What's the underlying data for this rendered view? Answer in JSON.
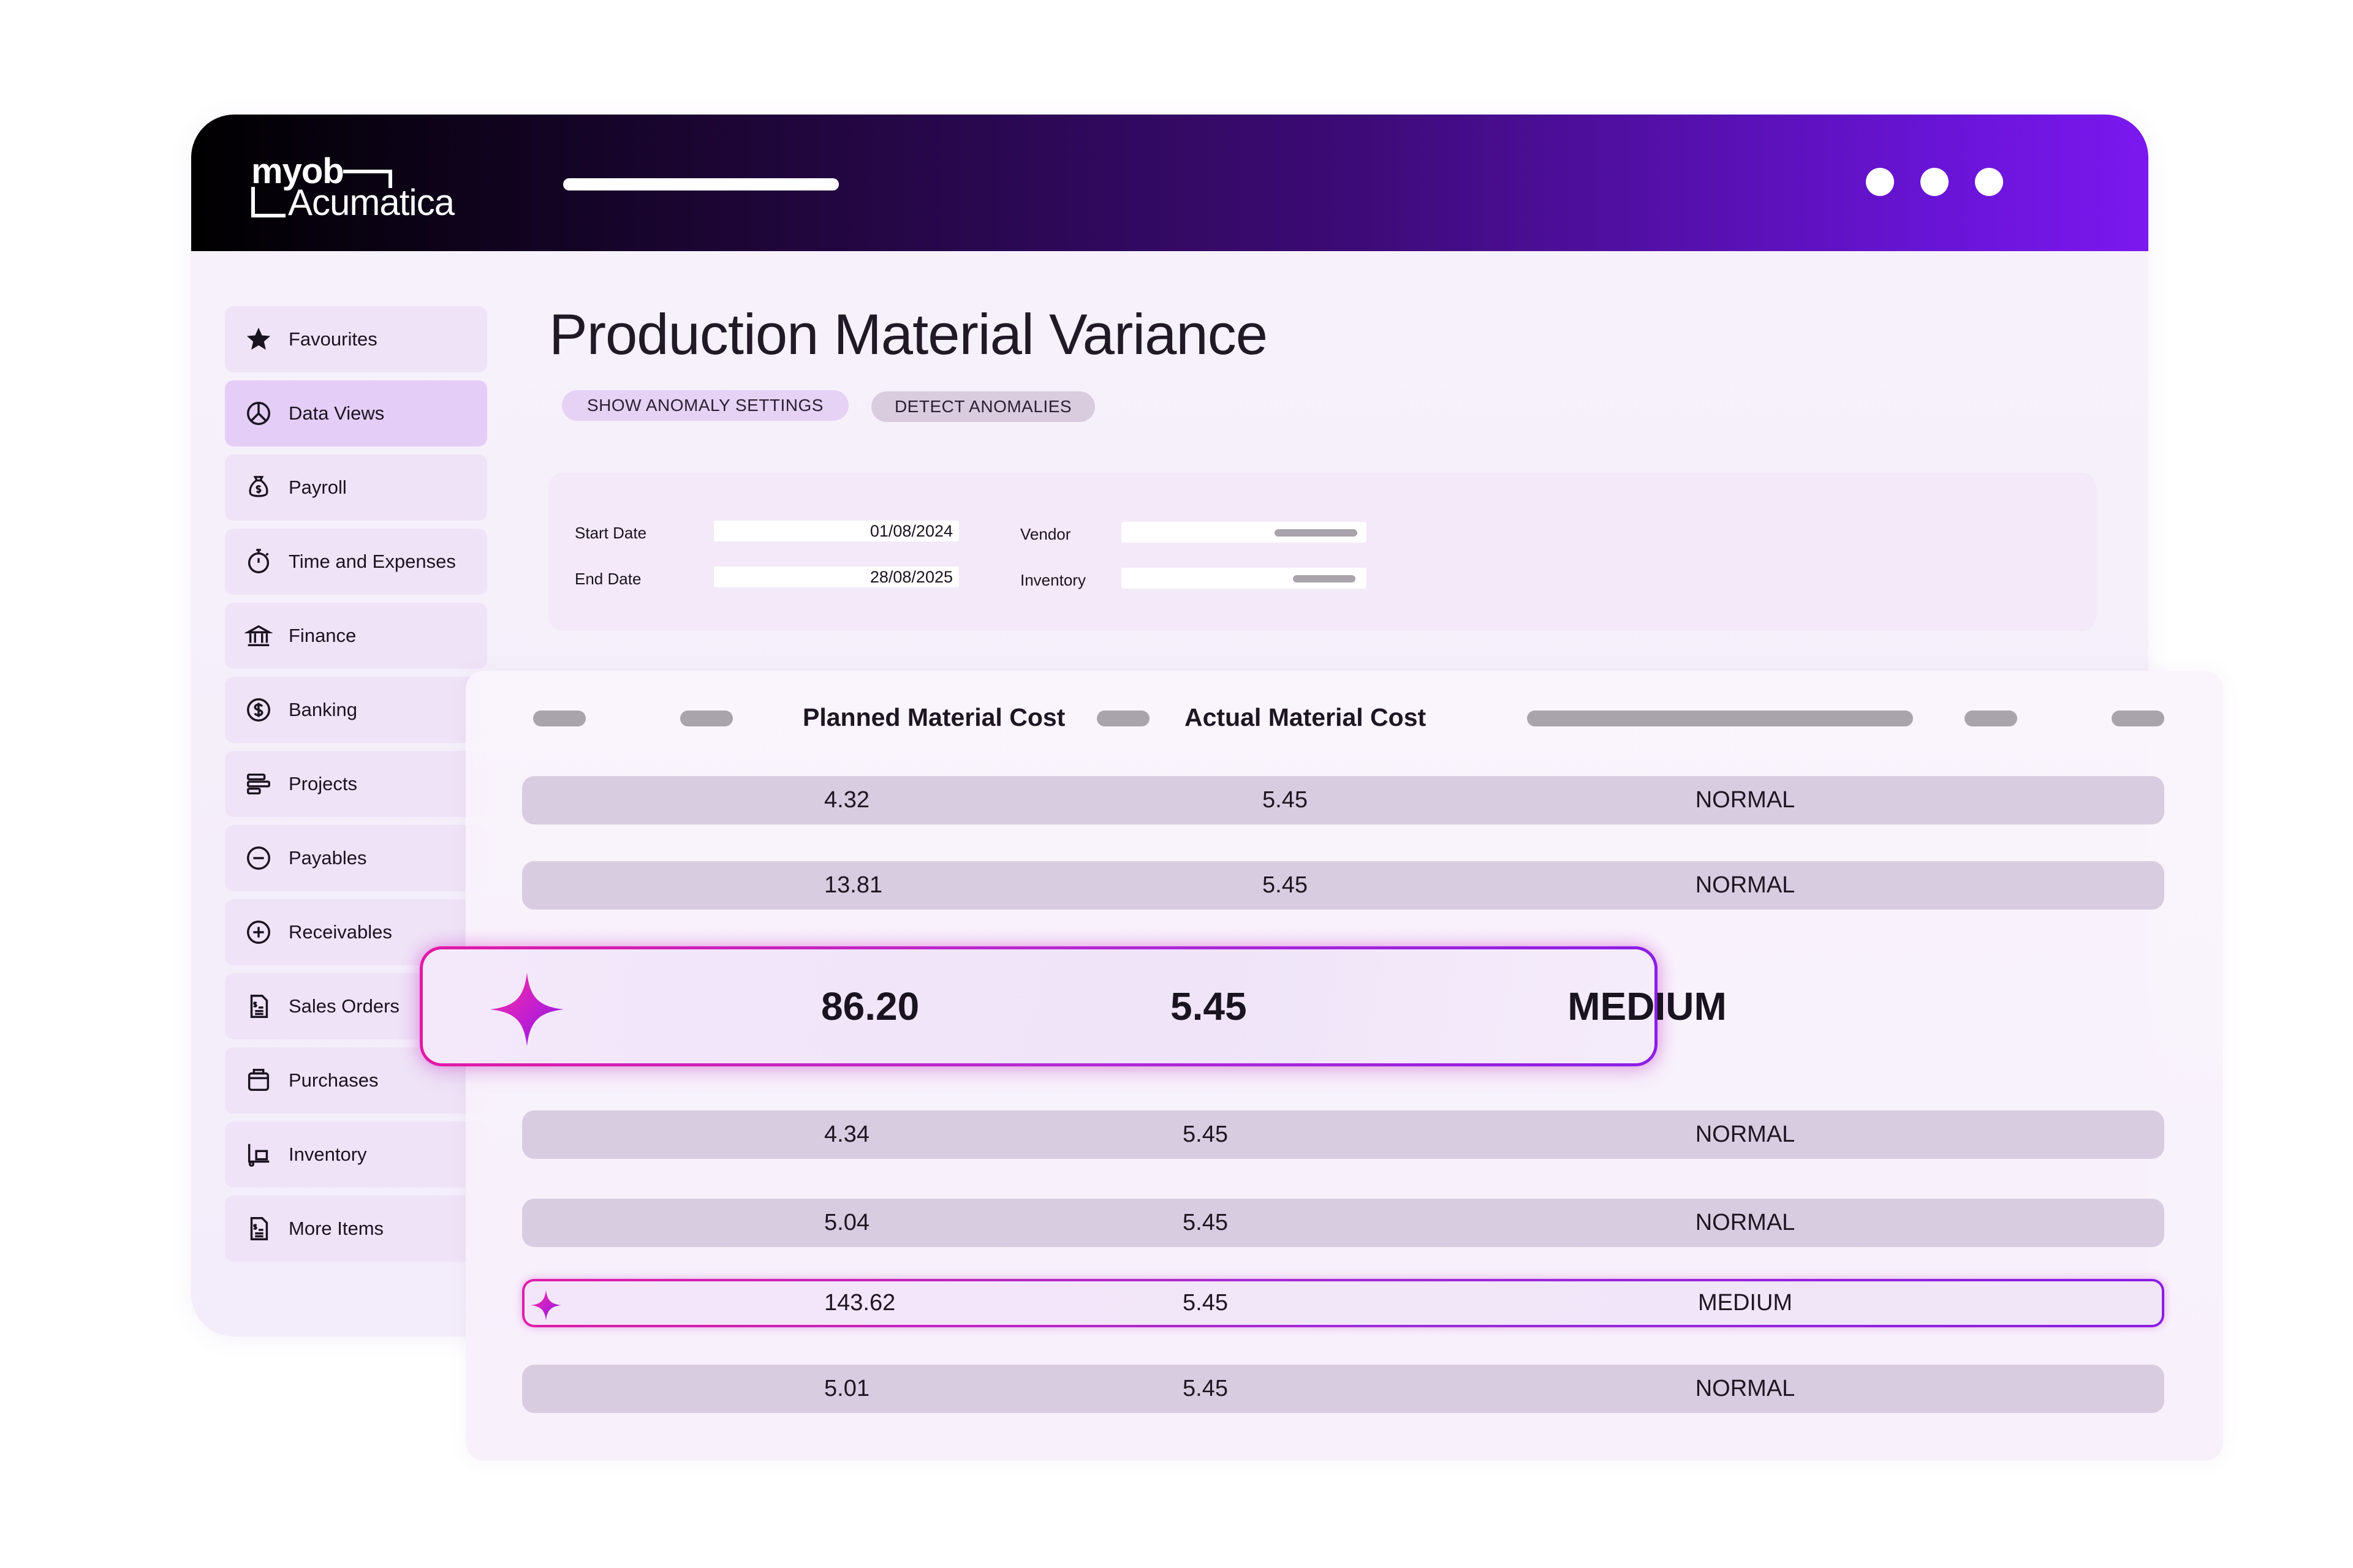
{
  "app": {
    "logo_line1": "myob",
    "logo_line2": "Acumatica"
  },
  "sidebar": {
    "items": [
      {
        "label": "Favourites",
        "icon": "star-icon"
      },
      {
        "label": "Data Views",
        "icon": "pie-chart-icon"
      },
      {
        "label": "Payroll",
        "icon": "money-bag-icon"
      },
      {
        "label": "Time and Expenses",
        "icon": "stopwatch-icon"
      },
      {
        "label": "Finance",
        "icon": "bank-icon"
      },
      {
        "label": "Banking",
        "icon": "dollar-circle-icon"
      },
      {
        "label": "Projects",
        "icon": "projects-icon"
      },
      {
        "label": "Payables",
        "icon": "minus-circle-icon"
      },
      {
        "label": "Receivables",
        "icon": "plus-circle-icon"
      },
      {
        "label": "Sales Orders",
        "icon": "sales-document-icon"
      },
      {
        "label": "Purchases",
        "icon": "purchases-icon"
      },
      {
        "label": "Inventory",
        "icon": "inventory-icon"
      },
      {
        "label": "More Items",
        "icon": "more-items-icon"
      }
    ]
  },
  "page": {
    "title": "Production Material Variance",
    "buttons": {
      "show_anomaly_settings": "SHOW ANOMALY SETTINGS",
      "detect_anomalies": "DETECT ANOMALIES"
    }
  },
  "filters": {
    "start_date_label": "Start Date",
    "start_date_value": "01/08/2024",
    "end_date_label": "End Date",
    "end_date_value": "28/08/2025",
    "vendor_label": "Vendor",
    "inventory_label": "Inventory"
  },
  "table": {
    "columns": {
      "planned": "Planned Material Cost",
      "actual": "Actual Material Cost"
    },
    "rows": [
      {
        "planned": "4.32",
        "actual": "5.45",
        "status": "NORMAL"
      },
      {
        "planned": "13.81",
        "actual": "5.45",
        "status": "NORMAL"
      },
      {
        "planned": "4.34",
        "actual": "5.45",
        "status": "NORMAL"
      },
      {
        "planned": "5.04",
        "actual": "5.45",
        "status": "NORMAL"
      },
      {
        "planned": "143.62",
        "actual": "5.45",
        "status": "MEDIUM"
      },
      {
        "planned": "5.01",
        "actual": "5.45",
        "status": "NORMAL"
      }
    ],
    "highlight": {
      "planned": "86.20",
      "actual": "5.45",
      "status": "MEDIUM"
    }
  },
  "colors": {
    "topbar_start": "#000000",
    "topbar_end": "#7b18ef",
    "anomaly_pink": "#e21aa6",
    "anomaly_purple": "#8c1ee5",
    "row_bg": "#d8cde0",
    "sidebar_bg": "#efe3f7"
  }
}
